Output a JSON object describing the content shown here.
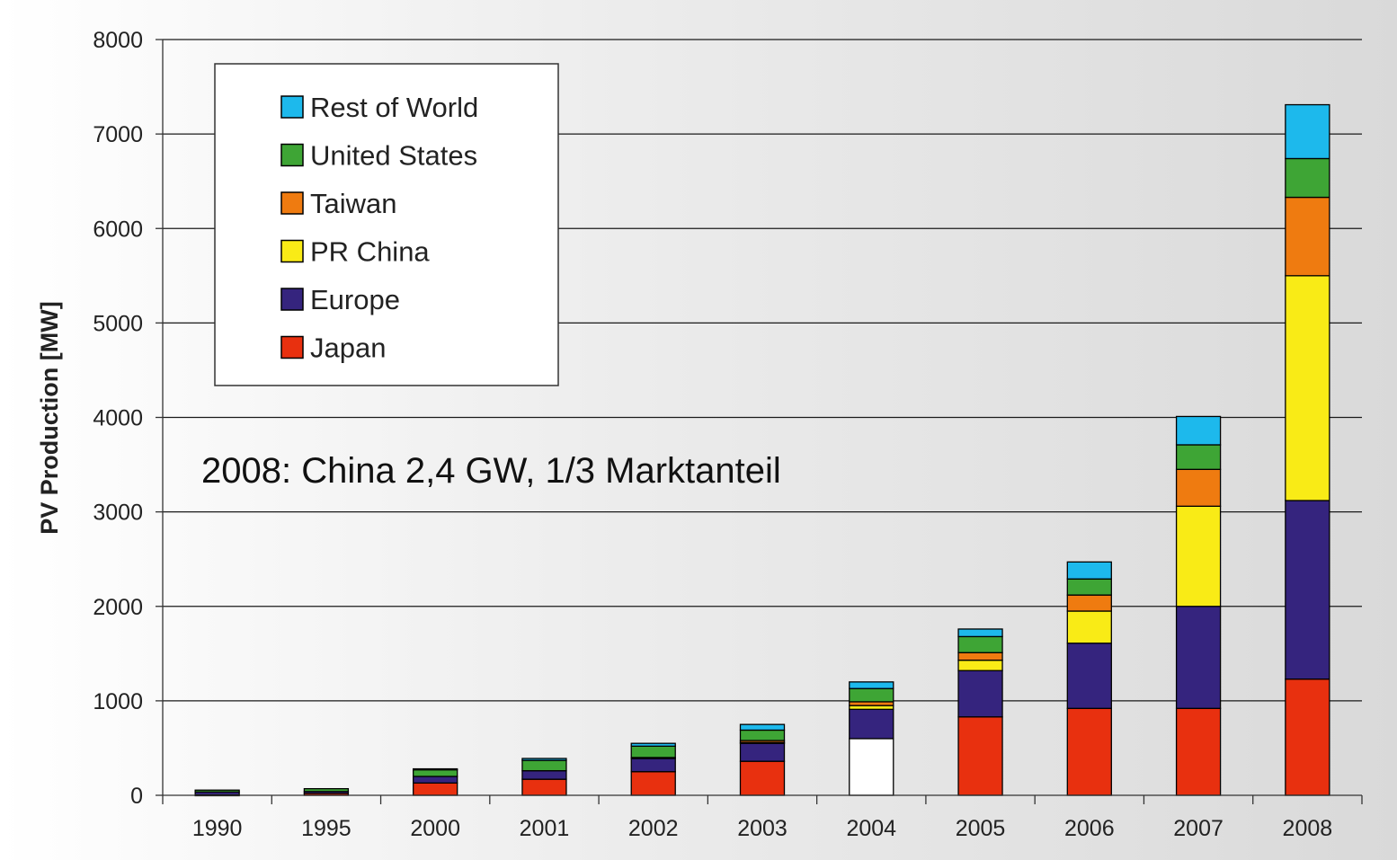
{
  "chart_data": {
    "type": "bar",
    "stacked": true,
    "categories": [
      "1990",
      "1995",
      "2000",
      "2001",
      "2002",
      "2003",
      "2004",
      "2005",
      "2006",
      "2007",
      "2008"
    ],
    "series": [
      {
        "name": "Japan",
        "color": "#e8300f",
        "values": [
          5,
          20,
          130,
          170,
          250,
          360,
          600,
          830,
          920,
          920,
          1230
        ]
      },
      {
        "name": "Europe",
        "color": "#35247e",
        "values": [
          30,
          20,
          70,
          90,
          140,
          190,
          310,
          490,
          690,
          1080,
          1890
        ]
      },
      {
        "name": "PR China",
        "color": "#f9eb16",
        "values": [
          0,
          0,
          0,
          0,
          0,
          10,
          40,
          110,
          340,
          1060,
          2380
        ]
      },
      {
        "name": "Taiwan",
        "color": "#ef7b10",
        "values": [
          0,
          0,
          0,
          0,
          10,
          20,
          40,
          80,
          170,
          390,
          830
        ]
      },
      {
        "name": "United States",
        "color": "#3ea535",
        "values": [
          20,
          30,
          70,
          110,
          120,
          110,
          140,
          170,
          170,
          260,
          410
        ]
      },
      {
        "name": "Rest of World",
        "color": "#1db9ec",
        "values": [
          0,
          0,
          10,
          20,
          30,
          60,
          70,
          80,
          180,
          300,
          570
        ]
      }
    ],
    "exceptions": [
      {
        "category": "2004",
        "series": "Japan",
        "fill": "#ffffff"
      }
    ],
    "ylabel": "PV Production [MW]",
    "xlabel": "",
    "ylim": [
      0,
      8000
    ],
    "yticks": [
      0,
      1000,
      2000,
      3000,
      4000,
      5000,
      6000,
      7000,
      8000
    ],
    "grid": true,
    "legend_position": "top-left",
    "legend_order": [
      "Rest of World",
      "United States",
      "Taiwan",
      "PR China",
      "Europe",
      "Japan"
    ],
    "annotation": "2008: China 2,4 GW, 1/3 Marktanteil"
  }
}
